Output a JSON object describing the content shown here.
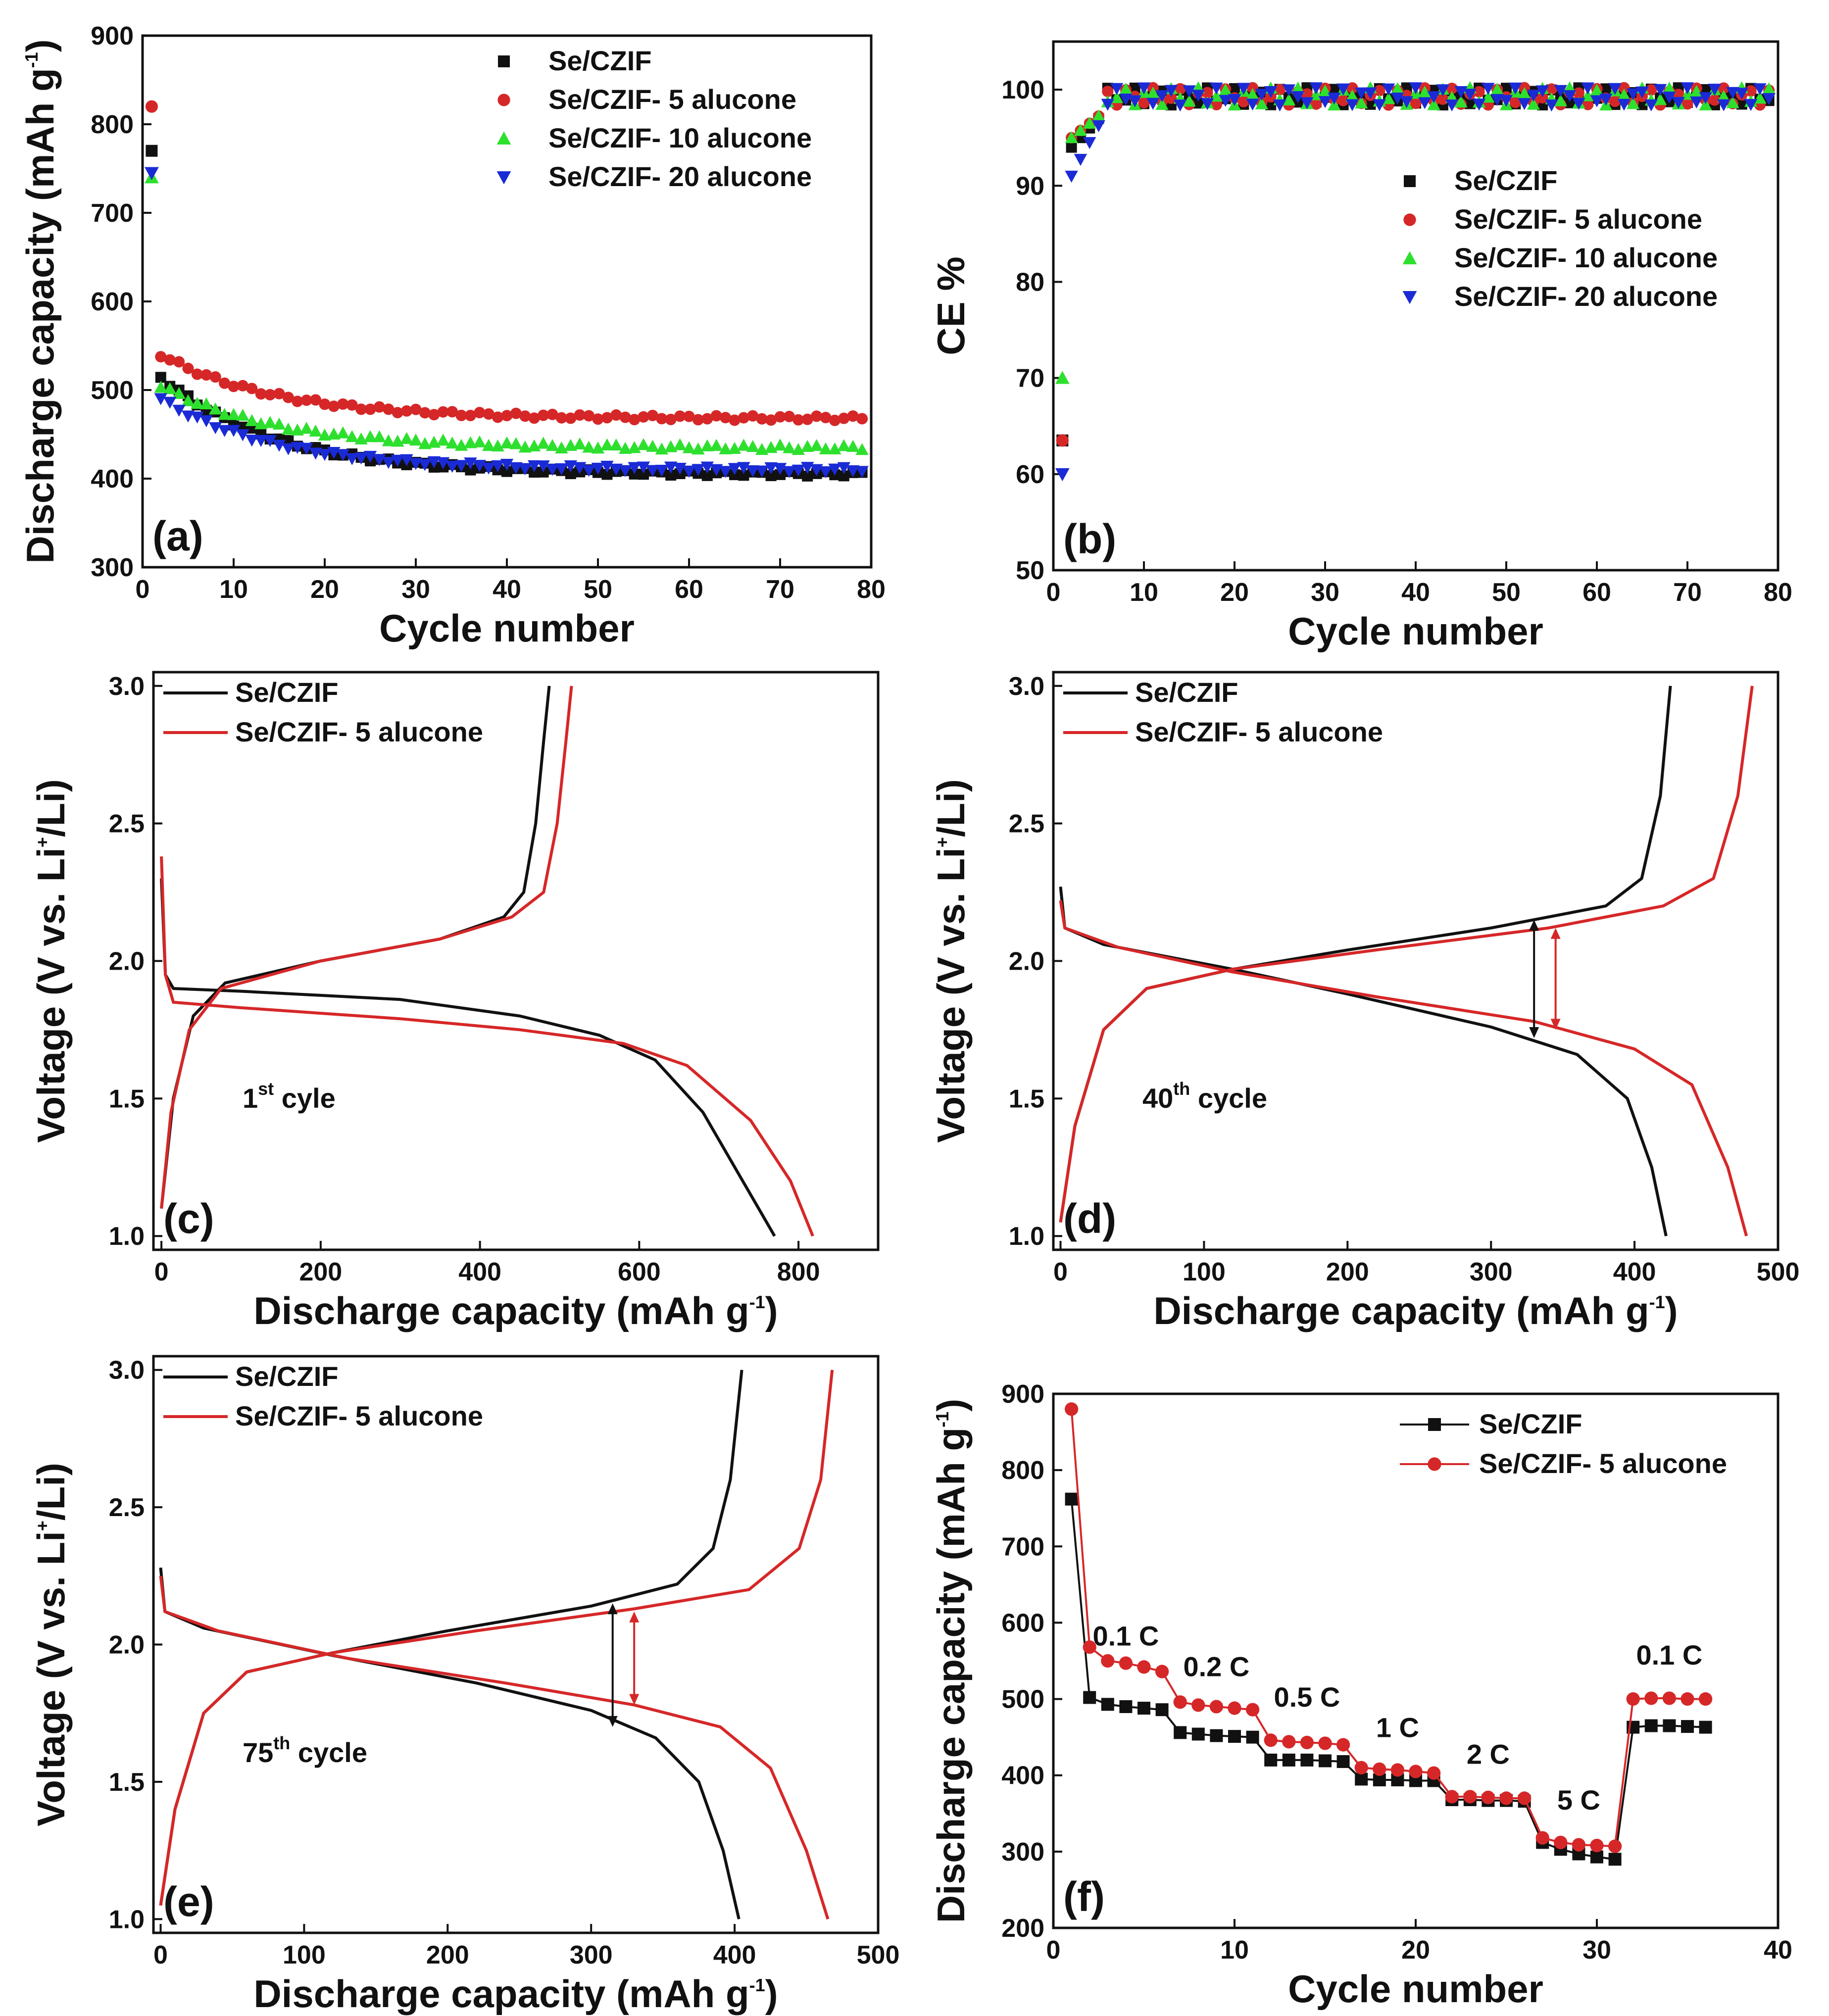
{
  "colors": {
    "se_czif": "#111111",
    "alucone5": "#d62728",
    "alucone10": "#2ee02e",
    "alucone20": "#1a2bd6",
    "arrow_black": "#111111",
    "arrow_red": "#d62728"
  },
  "chart_data": [
    {
      "id": "a",
      "type": "scatter",
      "panel_label": "(a)",
      "xlabel": "Cycle number",
      "ylabel": "Discharge capacity (mAh g",
      "ylabel_sup": "-1",
      "ylabel_close": ")",
      "xlim": [
        0,
        80
      ],
      "ylim": [
        300,
        900
      ],
      "xticks": [
        "0",
        "10",
        "20",
        "30",
        "40",
        "50",
        "60",
        "70",
        "80"
      ],
      "yticks": [
        "300",
        "400",
        "500",
        "600",
        "700",
        "800",
        "900"
      ],
      "legend": [
        "Se/CZIF",
        "Se/CZIF- 5 alucone",
        "Se/CZIF- 10 alucone",
        "Se/CZIF- 20 alucone"
      ],
      "legend_position": "top-right",
      "series": [
        {
          "name": "Se/CZIF",
          "marker": "square",
          "first": [
            1,
            770
          ],
          "start": 515,
          "end": 405
        },
        {
          "name": "Se/CZIF- 5 alucone",
          "marker": "circle",
          "first": [
            1,
            820
          ],
          "start": 540,
          "end": 468
        },
        {
          "name": "Se/CZIF- 10 alucone",
          "marker": "triangle-up",
          "first": [
            1,
            740
          ],
          "start": 505,
          "end": 435
        },
        {
          "name": "Se/CZIF- 20 alucone",
          "marker": "triangle-down",
          "first": [
            1,
            745
          ],
          "start": 490,
          "end": 410
        }
      ]
    },
    {
      "id": "b",
      "type": "scatter",
      "panel_label": "(b)",
      "xlabel": "Cycle number",
      "ylabel": "CE %",
      "xlim": [
        0,
        80
      ],
      "ylim": [
        50,
        105
      ],
      "xticks": [
        "0",
        "10",
        "20",
        "30",
        "40",
        "50",
        "60",
        "70",
        "80"
      ],
      "yticks": [
        "50",
        "60",
        "70",
        "80",
        "90",
        "100"
      ],
      "legend": [
        "Se/CZIF",
        "Se/CZIF- 5 alucone",
        "Se/CZIF- 10 alucone",
        "Se/CZIF- 20 alucone"
      ],
      "legend_position": "center-right",
      "series": [
        {
          "name": "Se/CZIF",
          "marker": "square",
          "first": [
            1,
            63.5
          ],
          "second": [
            2,
            94
          ]
        },
        {
          "name": "Se/CZIF- 5 alucone",
          "marker": "circle",
          "first": [
            1,
            63.5
          ],
          "second": [
            2,
            95
          ]
        },
        {
          "name": "Se/CZIF- 10 alucone",
          "marker": "triangle-up",
          "first": [
            1,
            70
          ],
          "second": [
            2,
            95
          ]
        },
        {
          "name": "Se/CZIF- 20 alucone",
          "marker": "triangle-down",
          "first": [
            1,
            60
          ],
          "second": [
            2,
            91
          ]
        }
      ]
    },
    {
      "id": "c",
      "type": "line",
      "panel_label": "(c)",
      "annotation": "1",
      "annotation_sup": "st",
      "annotation_tail": " cyle",
      "xlabel": "Discharge capacity (mAh g",
      "xlabel_sup": "-1",
      "xlabel_close": ")",
      "ylabel": "Voltage (V vs. Li",
      "ylabel_sup": "+",
      "ylabel_close": "/Li)",
      "xlim": [
        -10,
        900
      ],
      "ylim": [
        0.95,
        3.05
      ],
      "xticks": [
        "0",
        "200",
        "400",
        "600",
        "800"
      ],
      "yticks": [
        "1.0",
        "1.5",
        "2.0",
        "2.5",
        "3.0"
      ],
      "legend": [
        "Se/CZIF",
        "Se/CZIF- 5 alucone"
      ],
      "legend_position": "top-left",
      "series": [
        {
          "name": "Se/CZIF",
          "discharge": [
            [
              0,
              2.3
            ],
            [
              5,
              1.95
            ],
            [
              15,
              1.9
            ],
            [
              100,
              1.89
            ],
            [
              300,
              1.86
            ],
            [
              450,
              1.8
            ],
            [
              550,
              1.73
            ],
            [
              620,
              1.64
            ],
            [
              680,
              1.45
            ],
            [
              730,
              1.2
            ],
            [
              770,
              1.0
            ]
          ],
          "charge": [
            [
              0,
              1.1
            ],
            [
              15,
              1.5
            ],
            [
              40,
              1.8
            ],
            [
              80,
              1.92
            ],
            [
              200,
              2.0
            ],
            [
              350,
              2.08
            ],
            [
              430,
              2.16
            ],
            [
              455,
              2.25
            ],
            [
              470,
              2.5
            ],
            [
              480,
              2.8
            ],
            [
              487,
              3.0
            ]
          ]
        },
        {
          "name": "Se/CZIF- 5 alucone",
          "discharge": [
            [
              0,
              2.38
            ],
            [
              5,
              1.95
            ],
            [
              15,
              1.85
            ],
            [
              100,
              1.83
            ],
            [
              300,
              1.79
            ],
            [
              450,
              1.75
            ],
            [
              580,
              1.7
            ],
            [
              660,
              1.62
            ],
            [
              740,
              1.42
            ],
            [
              790,
              1.2
            ],
            [
              818,
              1.0
            ]
          ],
          "charge": [
            [
              0,
              1.1
            ],
            [
              12,
              1.45
            ],
            [
              35,
              1.75
            ],
            [
              75,
              1.9
            ],
            [
              200,
              2.0
            ],
            [
              350,
              2.08
            ],
            [
              440,
              2.16
            ],
            [
              480,
              2.25
            ],
            [
              497,
              2.5
            ],
            [
              508,
              2.8
            ],
            [
              515,
              3.0
            ]
          ]
        }
      ]
    },
    {
      "id": "d",
      "type": "line",
      "panel_label": "(d)",
      "annotation": "40",
      "annotation_sup": "th",
      "annotation_tail": " cycle",
      "xlabel": "Discharge capacity (mAh g",
      "xlabel_sup": "-1",
      "xlabel_close": ")",
      "ylabel": "Voltage (V vs. Li",
      "ylabel_sup": "+",
      "ylabel_close": "/Li)",
      "xlim": [
        -5,
        500
      ],
      "ylim": [
        0.95,
        3.05
      ],
      "xticks": [
        "0",
        "100",
        "200",
        "300",
        "400",
        "500"
      ],
      "yticks": [
        "1.0",
        "1.5",
        "2.0",
        "2.5",
        "3.0"
      ],
      "legend": [
        "Se/CZIF",
        "Se/CZIF- 5 alucone"
      ],
      "legend_position": "top-left",
      "series": [
        {
          "name": "Se/CZIF",
          "discharge": [
            [
              0,
              2.27
            ],
            [
              3,
              2.12
            ],
            [
              30,
              2.06
            ],
            [
              120,
              1.97
            ],
            [
              200,
              1.88
            ],
            [
              300,
              1.76
            ],
            [
              360,
              1.66
            ],
            [
              395,
              1.5
            ],
            [
              412,
              1.25
            ],
            [
              422,
              1.0
            ]
          ],
          "charge": [
            [
              0,
              1.05
            ],
            [
              10,
              1.4
            ],
            [
              30,
              1.75
            ],
            [
              60,
              1.9
            ],
            [
              120,
              1.97
            ],
            [
              200,
              2.04
            ],
            [
              300,
              2.12
            ],
            [
              380,
              2.2
            ],
            [
              405,
              2.3
            ],
            [
              418,
              2.6
            ],
            [
              425,
              3.0
            ]
          ]
        },
        {
          "name": "Se/CZIF- 5 alucone",
          "discharge": [
            [
              0,
              2.22
            ],
            [
              3,
              2.12
            ],
            [
              40,
              2.05
            ],
            [
              120,
              1.96
            ],
            [
              220,
              1.87
            ],
            [
              330,
              1.78
            ],
            [
              400,
              1.68
            ],
            [
              440,
              1.55
            ],
            [
              465,
              1.25
            ],
            [
              478,
              1.0
            ]
          ],
          "charge": [
            [
              0,
              1.05
            ],
            [
              10,
              1.4
            ],
            [
              30,
              1.75
            ],
            [
              60,
              1.9
            ],
            [
              120,
              1.97
            ],
            [
              220,
              2.04
            ],
            [
              340,
              2.12
            ],
            [
              420,
              2.2
            ],
            [
              455,
              2.3
            ],
            [
              472,
              2.6
            ],
            [
              482,
              3.0
            ]
          ]
        }
      ],
      "arrows": [
        {
          "color": "black",
          "x": 330,
          "y_from": 2.15,
          "y_to": 1.72
        },
        {
          "color": "red",
          "x": 345,
          "y_from": 2.12,
          "y_to": 1.75
        }
      ]
    },
    {
      "id": "e",
      "type": "line",
      "panel_label": "(e)",
      "annotation": "75",
      "annotation_sup": "th",
      "annotation_tail": " cycle",
      "xlabel": "Discharge capacity (mAh g",
      "xlabel_sup": "-1",
      "xlabel_close": ")",
      "ylabel": "Voltage (V vs. Li",
      "ylabel_sup": "+",
      "ylabel_close": "/Li)",
      "xlim": [
        -5,
        500
      ],
      "ylim": [
        0.95,
        3.05
      ],
      "xticks": [
        "0",
        "100",
        "200",
        "300",
        "400",
        "500"
      ],
      "yticks": [
        "1.0",
        "1.5",
        "2.0",
        "2.5",
        "3.0"
      ],
      "legend": [
        "Se/CZIF",
        "Se/CZIF- 5 alucone"
      ],
      "legend_position": "top-left",
      "series": [
        {
          "name": "Se/CZIF",
          "discharge": [
            [
              0,
              2.28
            ],
            [
              3,
              2.12
            ],
            [
              30,
              2.06
            ],
            [
              120,
              1.96
            ],
            [
              220,
              1.86
            ],
            [
              300,
              1.76
            ],
            [
              345,
              1.66
            ],
            [
              375,
              1.5
            ],
            [
              392,
              1.25
            ],
            [
              403,
              1.0
            ]
          ],
          "charge": [
            [
              0,
              1.05
            ],
            [
              10,
              1.4
            ],
            [
              30,
              1.75
            ],
            [
              60,
              1.9
            ],
            [
              120,
              1.97
            ],
            [
              200,
              2.05
            ],
            [
              300,
              2.14
            ],
            [
              360,
              2.22
            ],
            [
              385,
              2.35
            ],
            [
              397,
              2.6
            ],
            [
              405,
              3.0
            ]
          ]
        },
        {
          "name": "Se/CZIF- 5 alucone",
          "discharge": [
            [
              0,
              2.25
            ],
            [
              3,
              2.12
            ],
            [
              40,
              2.05
            ],
            [
              130,
              1.95
            ],
            [
              240,
              1.86
            ],
            [
              330,
              1.78
            ],
            [
              390,
              1.7
            ],
            [
              425,
              1.55
            ],
            [
              450,
              1.25
            ],
            [
              465,
              1.0
            ]
          ],
          "charge": [
            [
              0,
              1.05
            ],
            [
              10,
              1.4
            ],
            [
              30,
              1.75
            ],
            [
              60,
              1.9
            ],
            [
              120,
              1.97
            ],
            [
              220,
              2.05
            ],
            [
              330,
              2.13
            ],
            [
              410,
              2.2
            ],
            [
              445,
              2.35
            ],
            [
              460,
              2.6
            ],
            [
              468,
              3.0
            ]
          ]
        }
      ],
      "arrows": [
        {
          "color": "black",
          "x": 315,
          "y_from": 2.15,
          "y_to": 1.7
        },
        {
          "color": "red",
          "x": 330,
          "y_from": 2.12,
          "y_to": 1.78
        }
      ]
    },
    {
      "id": "f",
      "type": "line",
      "panel_label": "(f)",
      "xlabel": "Cycle number",
      "ylabel": "Discharge capacity (mAh g",
      "ylabel_sup": "-1",
      "ylabel_close": ")",
      "xlim": [
        0,
        40
      ],
      "ylim": [
        200,
        900
      ],
      "xticks": [
        "0",
        "10",
        "20",
        "30",
        "40"
      ],
      "yticks": [
        "200",
        "300",
        "400",
        "500",
        "600",
        "700",
        "800",
        "900"
      ],
      "legend": [
        "Se/CZIF",
        "Se/CZIF- 5 alucone"
      ],
      "legend_position": "top-right",
      "rate_labels": [
        {
          "text": "0.1 C",
          "x": 4,
          "y": 570
        },
        {
          "text": "0.2 C",
          "x": 9,
          "y": 530
        },
        {
          "text": "0.5 C",
          "x": 14,
          "y": 490
        },
        {
          "text": "1 C",
          "x": 19,
          "y": 450
        },
        {
          "text": "2 C",
          "x": 24,
          "y": 415
        },
        {
          "text": "5 C",
          "x": 29,
          "y": 355
        },
        {
          "text": "0.1 C",
          "x": 34,
          "y": 545
        }
      ],
      "x": [
        1,
        2,
        3,
        4,
        5,
        6,
        7,
        8,
        9,
        10,
        11,
        12,
        13,
        14,
        15,
        16,
        17,
        18,
        19,
        20,
        21,
        22,
        23,
        24,
        25,
        26,
        27,
        28,
        29,
        30,
        31,
        32,
        33,
        34,
        35,
        36
      ],
      "series": [
        {
          "name": "Se/CZIF",
          "marker": "square",
          "values": [
            762,
            502,
            493,
            490,
            488,
            486,
            456,
            454,
            452,
            451,
            450,
            420,
            420,
            420,
            419,
            418,
            395,
            394,
            394,
            393,
            393,
            368,
            368,
            367,
            367,
            366,
            312,
            303,
            297,
            293,
            290,
            463,
            465,
            465,
            464,
            463
          ]
        },
        {
          "name": "Se/CZIF- 5 alucone",
          "marker": "circle",
          "values": [
            880,
            568,
            550,
            547,
            542,
            536,
            496,
            492,
            490,
            488,
            486,
            446,
            444,
            443,
            442,
            440,
            410,
            408,
            407,
            405,
            403,
            372,
            372,
            371,
            370,
            370,
            318,
            312,
            309,
            308,
            307,
            500,
            501,
            501,
            500,
            500
          ]
        }
      ]
    }
  ]
}
